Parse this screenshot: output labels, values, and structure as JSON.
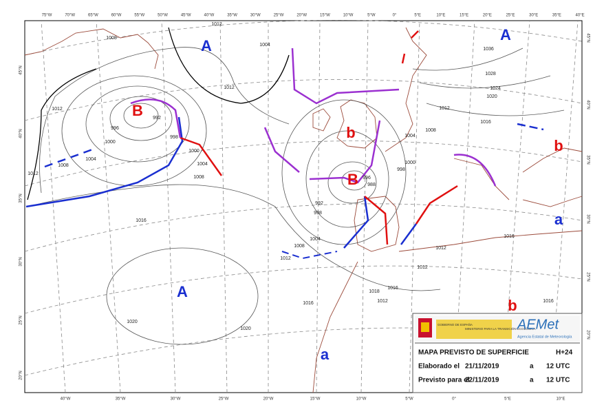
{
  "top_longitudes": [
    "75°W",
    "70°W",
    "65°W",
    "60°W",
    "55°W",
    "50°W",
    "45°W",
    "40°W",
    "35°W",
    "30°W",
    "25°W",
    "20°W",
    "15°W",
    "10°W",
    "5°W",
    "0°",
    "5°E",
    "10°E",
    "15°E",
    "20°E",
    "25°E",
    "30°E",
    "35°E",
    "40°E"
  ],
  "bottom_longitudes": [
    "40°W",
    "35°W",
    "30°W",
    "25°W",
    "20°W",
    "15°W",
    "10°W",
    "5°W",
    "0°",
    "5°E",
    "10°E"
  ],
  "left_latitudes": [
    "45°N",
    "40°N",
    "35°N",
    "30°N",
    "25°N",
    "20°N"
  ],
  "right_latitudes": [
    "45°N",
    "40°N",
    "35°N",
    "30°N",
    "25°N",
    "20°N"
  ],
  "pressure_centers": [
    "A",
    "A",
    "B",
    "b",
    "B",
    "b",
    "a",
    "A",
    "a",
    "b"
  ],
  "isobar_labels": [
    "1012",
    "1008",
    "1004",
    "1012",
    "1012",
    "996",
    "1000",
    "992",
    "998",
    "1000",
    "1004",
    "1008",
    "1004",
    "1008",
    "1012",
    "1016",
    "1020",
    "1020",
    "992",
    "998",
    "1004",
    "1008",
    "1012",
    "996",
    "988",
    "998",
    "1000",
    "1004",
    "1008",
    "1012",
    "1016",
    "1020",
    "1024",
    "1028",
    "1036",
    "1012",
    "1012",
    "1016",
    "1012",
    "1016",
    "1016",
    "1016",
    "1018"
  ],
  "legend": {
    "government": "GOBIERNO DE ESPAÑA",
    "ministry": "MINISTERIO PARA LA TRANSICIÓN ECOLÓGICA",
    "logo": "AEMet",
    "agency": "Agencia Estatal de Meteorología",
    "title": "MAPA PREVISTO DE SUPERFICIE",
    "horizon": "H+24",
    "made_label": "Elaborado el",
    "made_date": "21/11/2019",
    "made_at": "a",
    "made_time": "12 UTC",
    "valid_label": "Previsto para el",
    "valid_date": "22/11/2019",
    "valid_at": "a",
    "valid_time": "12 UTC"
  }
}
